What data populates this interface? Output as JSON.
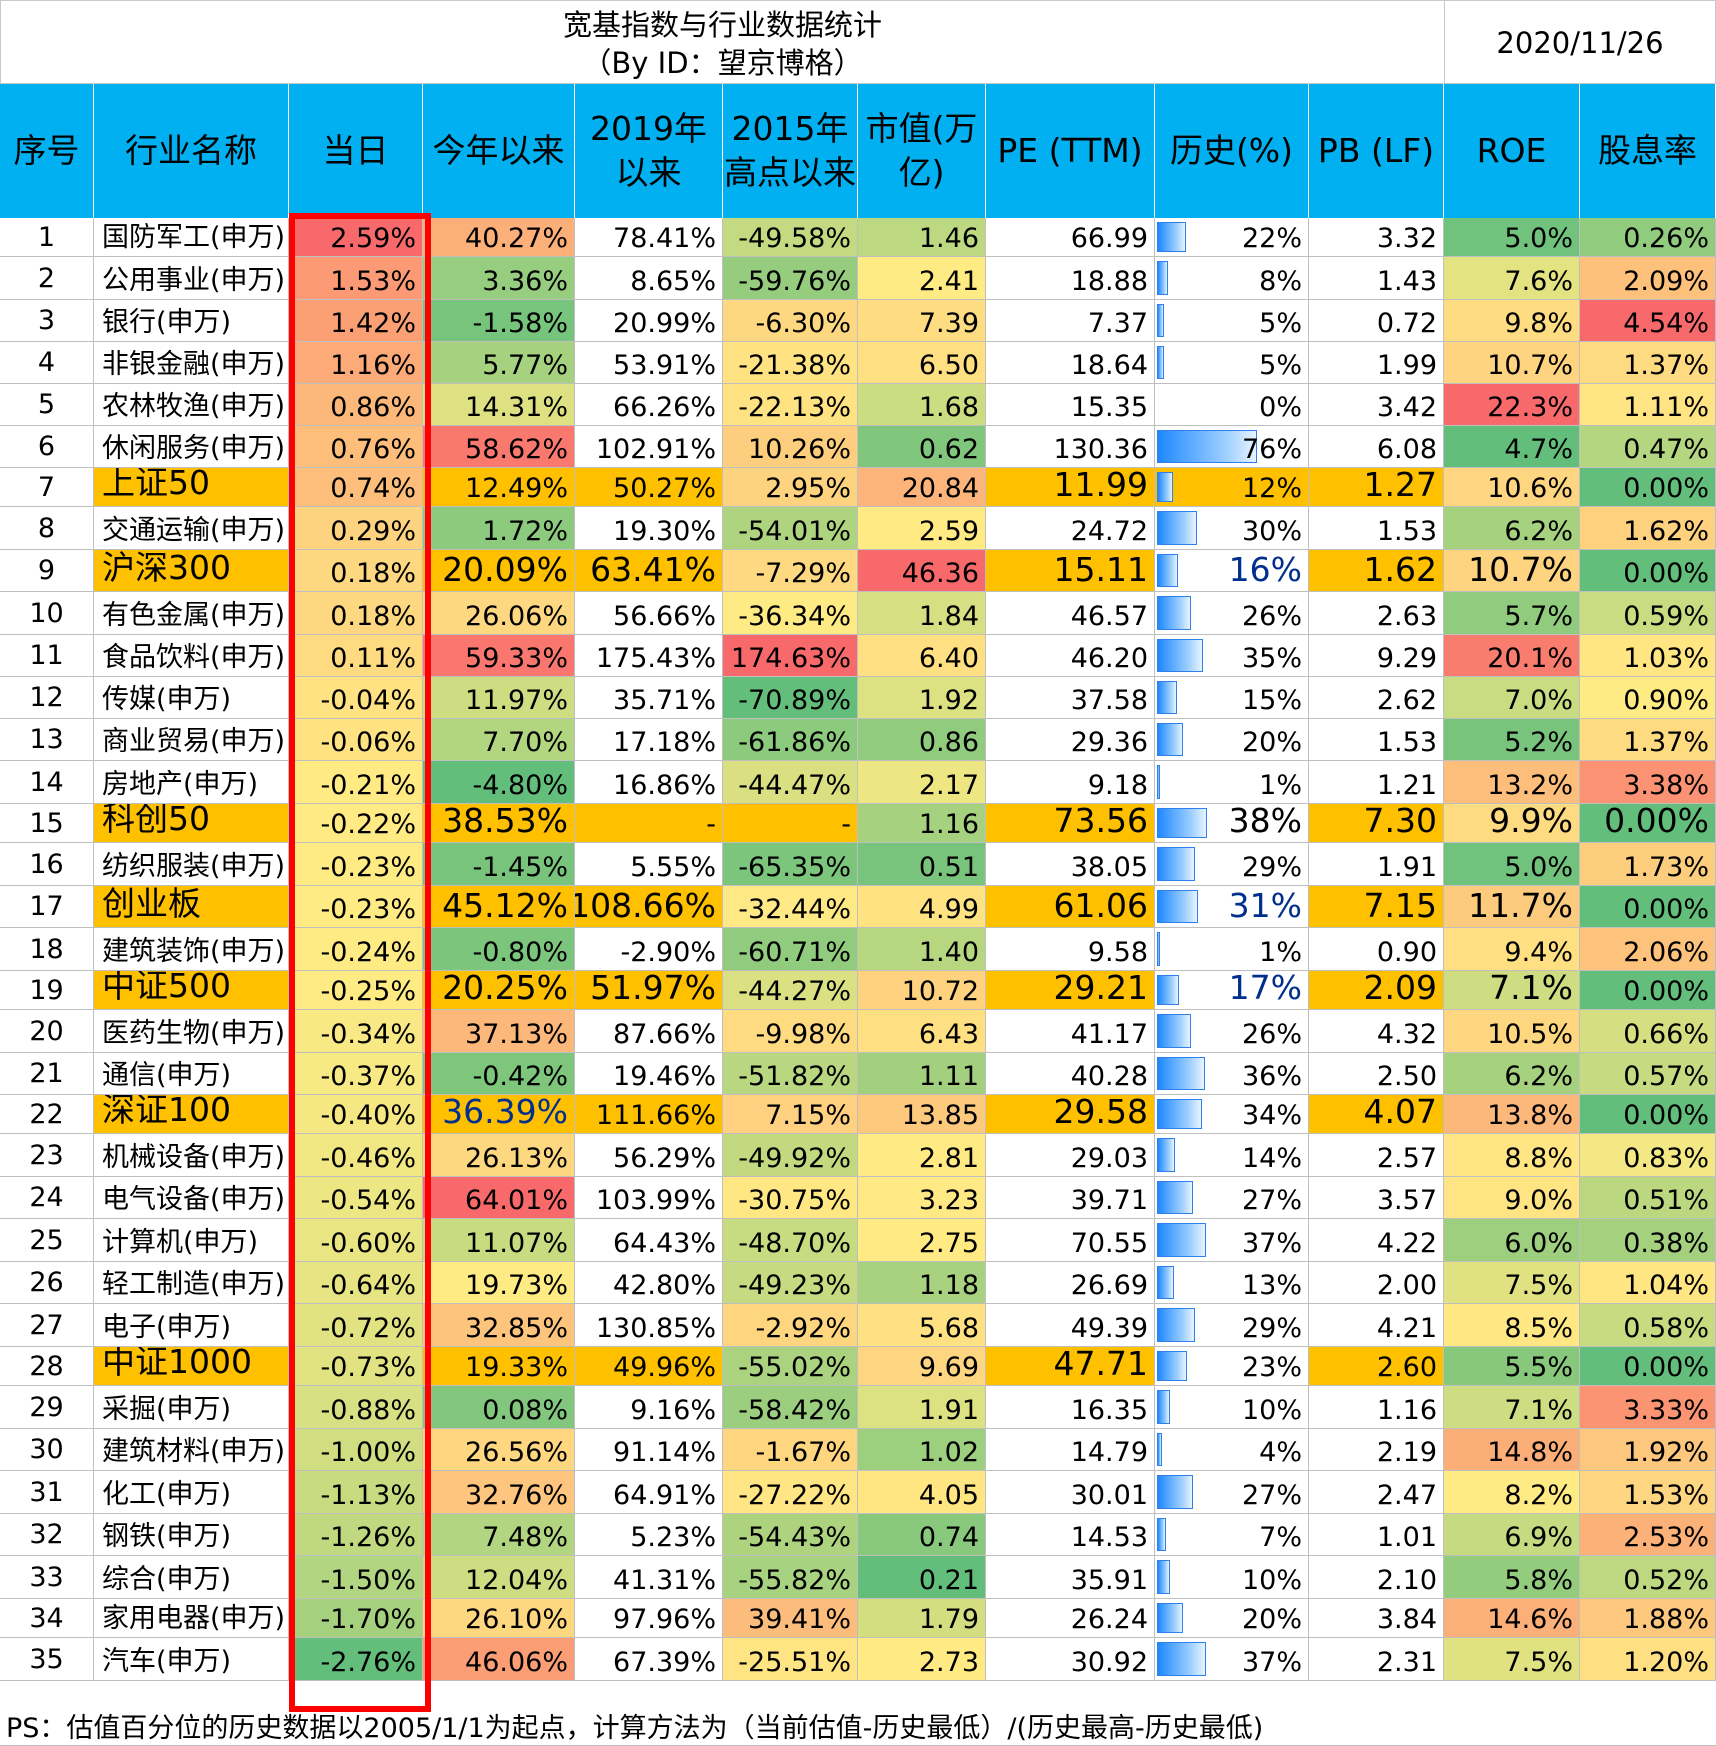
{
  "title": {
    "line1": "宽基指数与行业数据统计",
    "line2": "（By ID：望京博格）"
  },
  "date": "2020/11/26",
  "headers": [
    "序号",
    "行业名称",
    "当日",
    "今年以来",
    "2019年以来",
    "2015年高点以来",
    "市值(万亿)",
    "PE (TTM)",
    "历史(%)",
    "PB (LF)",
    "ROE",
    "股息率"
  ],
  "rows": [
    {
      "seq": "1",
      "name": "国防军工(申万)",
      "day": "2.59%",
      "ytd": "40.27%",
      "y2019": "78.41%",
      "y2015": "-49.58%",
      "cap": "1.46",
      "pe": "66.99",
      "hist": "22%",
      "pb": "3.32",
      "roe": "5.0%",
      "div": "0.26%"
    },
    {
      "seq": "2",
      "name": "公用事业(申万)",
      "day": "1.53%",
      "ytd": "3.36%",
      "y2019": "8.65%",
      "y2015": "-59.76%",
      "cap": "2.41",
      "pe": "18.88",
      "hist": "8%",
      "pb": "1.43",
      "roe": "7.6%",
      "div": "2.09%"
    },
    {
      "seq": "3",
      "name": "银行(申万)",
      "day": "1.42%",
      "ytd": "-1.58%",
      "y2019": "20.99%",
      "y2015": "-6.30%",
      "cap": "7.39",
      "pe": "7.37",
      "hist": "5%",
      "pb": "0.72",
      "roe": "9.8%",
      "div": "4.54%"
    },
    {
      "seq": "4",
      "name": "非银金融(申万)",
      "day": "1.16%",
      "ytd": "5.77%",
      "y2019": "53.91%",
      "y2015": "-21.38%",
      "cap": "6.50",
      "pe": "18.64",
      "hist": "5%",
      "pb": "1.99",
      "roe": "10.7%",
      "div": "1.37%"
    },
    {
      "seq": "5",
      "name": "农林牧渔(申万)",
      "day": "0.86%",
      "ytd": "14.31%",
      "y2019": "66.26%",
      "y2015": "-22.13%",
      "cap": "1.68",
      "pe": "15.35",
      "hist": "0%",
      "pb": "3.42",
      "roe": "22.3%",
      "div": "1.11%"
    },
    {
      "seq": "6",
      "name": "休闲服务(申万)",
      "day": "0.76%",
      "ytd": "58.62%",
      "y2019": "102.91%",
      "y2015": "10.26%",
      "cap": "0.62",
      "pe": "130.36",
      "hist": "76%",
      "pb": "6.08",
      "roe": "4.7%",
      "div": "0.47%"
    },
    {
      "seq": "7",
      "name": "上证50",
      "day": "0.74%",
      "ytd": "12.49%",
      "y2019": "50.27%",
      "y2015": "2.95%",
      "cap": "20.84",
      "pe": "11.99",
      "hist": "12%",
      "pb": "1.27",
      "roe": "10.6%",
      "div": "0.00%"
    },
    {
      "seq": "8",
      "name": "交通运输(申万)",
      "day": "0.29%",
      "ytd": "1.72%",
      "y2019": "19.30%",
      "y2015": "-54.01%",
      "cap": "2.59",
      "pe": "24.72",
      "hist": "30%",
      "pb": "1.53",
      "roe": "6.2%",
      "div": "1.62%"
    },
    {
      "seq": "9",
      "name": "沪深300",
      "day": "0.18%",
      "ytd": "20.09%",
      "y2019": "63.41%",
      "y2015": "-7.29%",
      "cap": "46.36",
      "pe": "15.11",
      "hist": "16%",
      "pb": "1.62",
      "roe": "10.7%",
      "div": "0.00%"
    },
    {
      "seq": "10",
      "name": "有色金属(申万)",
      "day": "0.18%",
      "ytd": "26.06%",
      "y2019": "56.66%",
      "y2015": "-36.34%",
      "cap": "1.84",
      "pe": "46.57",
      "hist": "26%",
      "pb": "2.63",
      "roe": "5.7%",
      "div": "0.59%"
    },
    {
      "seq": "11",
      "name": "食品饮料(申万)",
      "day": "0.11%",
      "ytd": "59.33%",
      "y2019": "175.43%",
      "y2015": "174.63%",
      "cap": "6.40",
      "pe": "46.20",
      "hist": "35%",
      "pb": "9.29",
      "roe": "20.1%",
      "div": "1.03%"
    },
    {
      "seq": "12",
      "name": "传媒(申万)",
      "day": "-0.04%",
      "ytd": "11.97%",
      "y2019": "35.71%",
      "y2015": "-70.89%",
      "cap": "1.92",
      "pe": "37.58",
      "hist": "15%",
      "pb": "2.62",
      "roe": "7.0%",
      "div": "0.90%"
    },
    {
      "seq": "13",
      "name": "商业贸易(申万)",
      "day": "-0.06%",
      "ytd": "7.70%",
      "y2019": "17.18%",
      "y2015": "-61.86%",
      "cap": "0.86",
      "pe": "29.36",
      "hist": "20%",
      "pb": "1.53",
      "roe": "5.2%",
      "div": "1.37%"
    },
    {
      "seq": "14",
      "name": "房地产(申万)",
      "day": "-0.21%",
      "ytd": "-4.80%",
      "y2019": "16.86%",
      "y2015": "-44.47%",
      "cap": "2.17",
      "pe": "9.18",
      "hist": "1%",
      "pb": "1.21",
      "roe": "13.2%",
      "div": "3.38%"
    },
    {
      "seq": "15",
      "name": "科创50",
      "day": "-0.22%",
      "ytd": "38.53%",
      "y2019": "-",
      "y2015": "-",
      "cap": "1.16",
      "pe": "73.56",
      "hist": "38%",
      "pb": "7.30",
      "roe": "9.9%",
      "div": "0.00%"
    },
    {
      "seq": "16",
      "name": "纺织服装(申万)",
      "day": "-0.23%",
      "ytd": "-1.45%",
      "y2019": "5.55%",
      "y2015": "-65.35%",
      "cap": "0.51",
      "pe": "38.05",
      "hist": "29%",
      "pb": "1.91",
      "roe": "5.0%",
      "div": "1.73%"
    },
    {
      "seq": "17",
      "name": "创业板",
      "day": "-0.23%",
      "ytd": "45.12%",
      "y2019": "108.66%",
      "y2015": "-32.44%",
      "cap": "4.99",
      "pe": "61.06",
      "hist": "31%",
      "pb": "7.15",
      "roe": "11.7%",
      "div": "0.00%"
    },
    {
      "seq": "18",
      "name": "建筑装饰(申万)",
      "day": "-0.24%",
      "ytd": "-0.80%",
      "y2019": "-2.90%",
      "y2015": "-60.71%",
      "cap": "1.40",
      "pe": "9.58",
      "hist": "1%",
      "pb": "0.90",
      "roe": "9.4%",
      "div": "2.06%"
    },
    {
      "seq": "19",
      "name": "中证500",
      "day": "-0.25%",
      "ytd": "20.25%",
      "y2019": "51.97%",
      "y2015": "-44.27%",
      "cap": "10.72",
      "pe": "29.21",
      "hist": "17%",
      "pb": "2.09",
      "roe": "7.1%",
      "div": "0.00%"
    },
    {
      "seq": "20",
      "name": "医药生物(申万)",
      "day": "-0.34%",
      "ytd": "37.13%",
      "y2019": "87.66%",
      "y2015": "-9.98%",
      "cap": "6.43",
      "pe": "41.17",
      "hist": "26%",
      "pb": "4.32",
      "roe": "10.5%",
      "div": "0.66%"
    },
    {
      "seq": "21",
      "name": "通信(申万)",
      "day": "-0.37%",
      "ytd": "-0.42%",
      "y2019": "19.46%",
      "y2015": "-51.82%",
      "cap": "1.11",
      "pe": "40.28",
      "hist": "36%",
      "pb": "2.50",
      "roe": "6.2%",
      "div": "0.57%"
    },
    {
      "seq": "22",
      "name": "深证100",
      "day": "-0.40%",
      "ytd": "36.39%",
      "y2019": "111.66%",
      "y2015": "7.15%",
      "cap": "13.85",
      "pe": "29.58",
      "hist": "34%",
      "pb": "4.07",
      "roe": "13.8%",
      "div": "0.00%"
    },
    {
      "seq": "23",
      "name": "机械设备(申万)",
      "day": "-0.46%",
      "ytd": "26.13%",
      "y2019": "56.29%",
      "y2015": "-49.92%",
      "cap": "2.81",
      "pe": "29.03",
      "hist": "14%",
      "pb": "2.57",
      "roe": "8.8%",
      "div": "0.83%"
    },
    {
      "seq": "24",
      "name": "电气设备(申万)",
      "day": "-0.54%",
      "ytd": "64.01%",
      "y2019": "103.99%",
      "y2015": "-30.75%",
      "cap": "3.23",
      "pe": "39.71",
      "hist": "27%",
      "pb": "3.57",
      "roe": "9.0%",
      "div": "0.51%"
    },
    {
      "seq": "25",
      "name": "计算机(申万)",
      "day": "-0.60%",
      "ytd": "11.07%",
      "y2019": "64.43%",
      "y2015": "-48.70%",
      "cap": "2.75",
      "pe": "70.55",
      "hist": "37%",
      "pb": "4.22",
      "roe": "6.0%",
      "div": "0.38%"
    },
    {
      "seq": "26",
      "name": "轻工制造(申万)",
      "day": "-0.64%",
      "ytd": "19.73%",
      "y2019": "42.80%",
      "y2015": "-49.23%",
      "cap": "1.18",
      "pe": "26.69",
      "hist": "13%",
      "pb": "2.00",
      "roe": "7.5%",
      "div": "1.04%"
    },
    {
      "seq": "27",
      "name": "电子(申万)",
      "day": "-0.72%",
      "ytd": "32.85%",
      "y2019": "130.85%",
      "y2015": "-2.92%",
      "cap": "5.68",
      "pe": "49.39",
      "hist": "29%",
      "pb": "4.21",
      "roe": "8.5%",
      "div": "0.58%"
    },
    {
      "seq": "28",
      "name": "中证1000",
      "day": "-0.73%",
      "ytd": "19.33%",
      "y2019": "49.96%",
      "y2015": "-55.02%",
      "cap": "9.69",
      "pe": "47.71",
      "hist": "23%",
      "pb": "2.60",
      "roe": "5.5%",
      "div": "0.00%"
    },
    {
      "seq": "29",
      "name": "采掘(申万)",
      "day": "-0.88%",
      "ytd": "0.08%",
      "y2019": "9.16%",
      "y2015": "-58.42%",
      "cap": "1.91",
      "pe": "16.35",
      "hist": "10%",
      "pb": "1.16",
      "roe": "7.1%",
      "div": "3.33%"
    },
    {
      "seq": "30",
      "name": "建筑材料(申万)",
      "day": "-1.00%",
      "ytd": "26.56%",
      "y2019": "91.14%",
      "y2015": "-1.67%",
      "cap": "1.02",
      "pe": "14.79",
      "hist": "4%",
      "pb": "2.19",
      "roe": "14.8%",
      "div": "1.92%"
    },
    {
      "seq": "31",
      "name": "化工(申万)",
      "day": "-1.13%",
      "ytd": "32.76%",
      "y2019": "64.91%",
      "y2015": "-27.22%",
      "cap": "4.05",
      "pe": "30.01",
      "hist": "27%",
      "pb": "2.47",
      "roe": "8.2%",
      "div": "1.53%"
    },
    {
      "seq": "32",
      "name": "钢铁(申万)",
      "day": "-1.26%",
      "ytd": "7.48%",
      "y2019": "5.23%",
      "y2015": "-54.43%",
      "cap": "0.74",
      "pe": "14.53",
      "hist": "7%",
      "pb": "1.01",
      "roe": "6.9%",
      "div": "2.53%"
    },
    {
      "seq": "33",
      "name": "综合(申万)",
      "day": "-1.50%",
      "ytd": "12.04%",
      "y2019": "41.31%",
      "y2015": "-55.82%",
      "cap": "0.21",
      "pe": "35.91",
      "hist": "10%",
      "pb": "2.10",
      "roe": "5.8%",
      "div": "0.52%"
    },
    {
      "seq": "34",
      "name": "家用电器(申万)",
      "day": "-1.70%",
      "ytd": "26.10%",
      "y2019": "97.96%",
      "y2015": "39.41%",
      "cap": "1.79",
      "pe": "26.24",
      "hist": "20%",
      "pb": "3.84",
      "roe": "14.6%",
      "div": "1.88%"
    },
    {
      "seq": "35",
      "name": "汽车(申万)",
      "day": "-2.76%",
      "ytd": "46.06%",
      "y2019": "67.39%",
      "y2015": "-25.51%",
      "cap": "2.73",
      "pe": "30.92",
      "hist": "37%",
      "pb": "2.31",
      "roe": "7.5%",
      "div": "1.20%"
    }
  ],
  "index_rows": [
    "7",
    "9",
    "15",
    "17",
    "19",
    "22",
    "28"
  ],
  "colors": {
    "header_bg": "#00b0f0",
    "index_bg": "#ffc000",
    "highlight_border": "#ff0000",
    "bar_blue": "#1e88ff"
  },
  "footer": "PS：估值百分位的历史数据以2005/1/1为起点，计算方法为（当前估值-历史最低）/(历史最高-历史最低)"
}
